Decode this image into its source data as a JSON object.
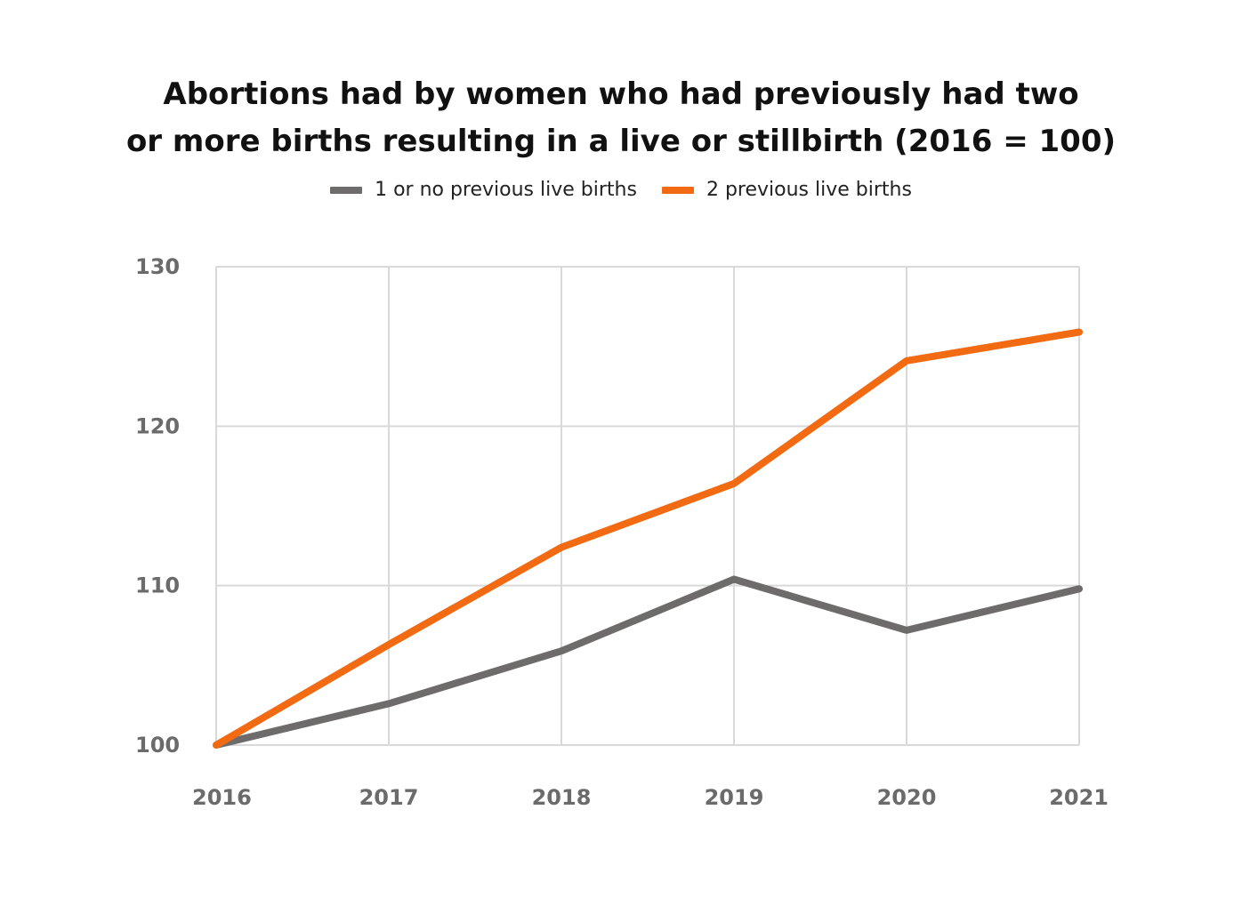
{
  "chart_data": {
    "type": "line",
    "title_lines": [
      "Abortions had by women who had previously had two",
      "or more births resulting in a live or stillbirth (2016 = 100)"
    ],
    "x": [
      "2016",
      "2017",
      "2018",
      "2019",
      "2020",
      "2021"
    ],
    "y_ticks": [
      "100",
      "110",
      "120",
      "130"
    ],
    "ylim": [
      100,
      130
    ],
    "grid": true,
    "legend_position": "top-center",
    "series": [
      {
        "name": "1 or no previous live births",
        "color": "#6e6b6b",
        "values": [
          100,
          102.6,
          105.9,
          110.4,
          107.2,
          109.8
        ]
      },
      {
        "name": "2 previous live births",
        "color": "#f26a12",
        "values": [
          100,
          106.3,
          112.4,
          116.4,
          124.1,
          125.9
        ]
      }
    ]
  }
}
